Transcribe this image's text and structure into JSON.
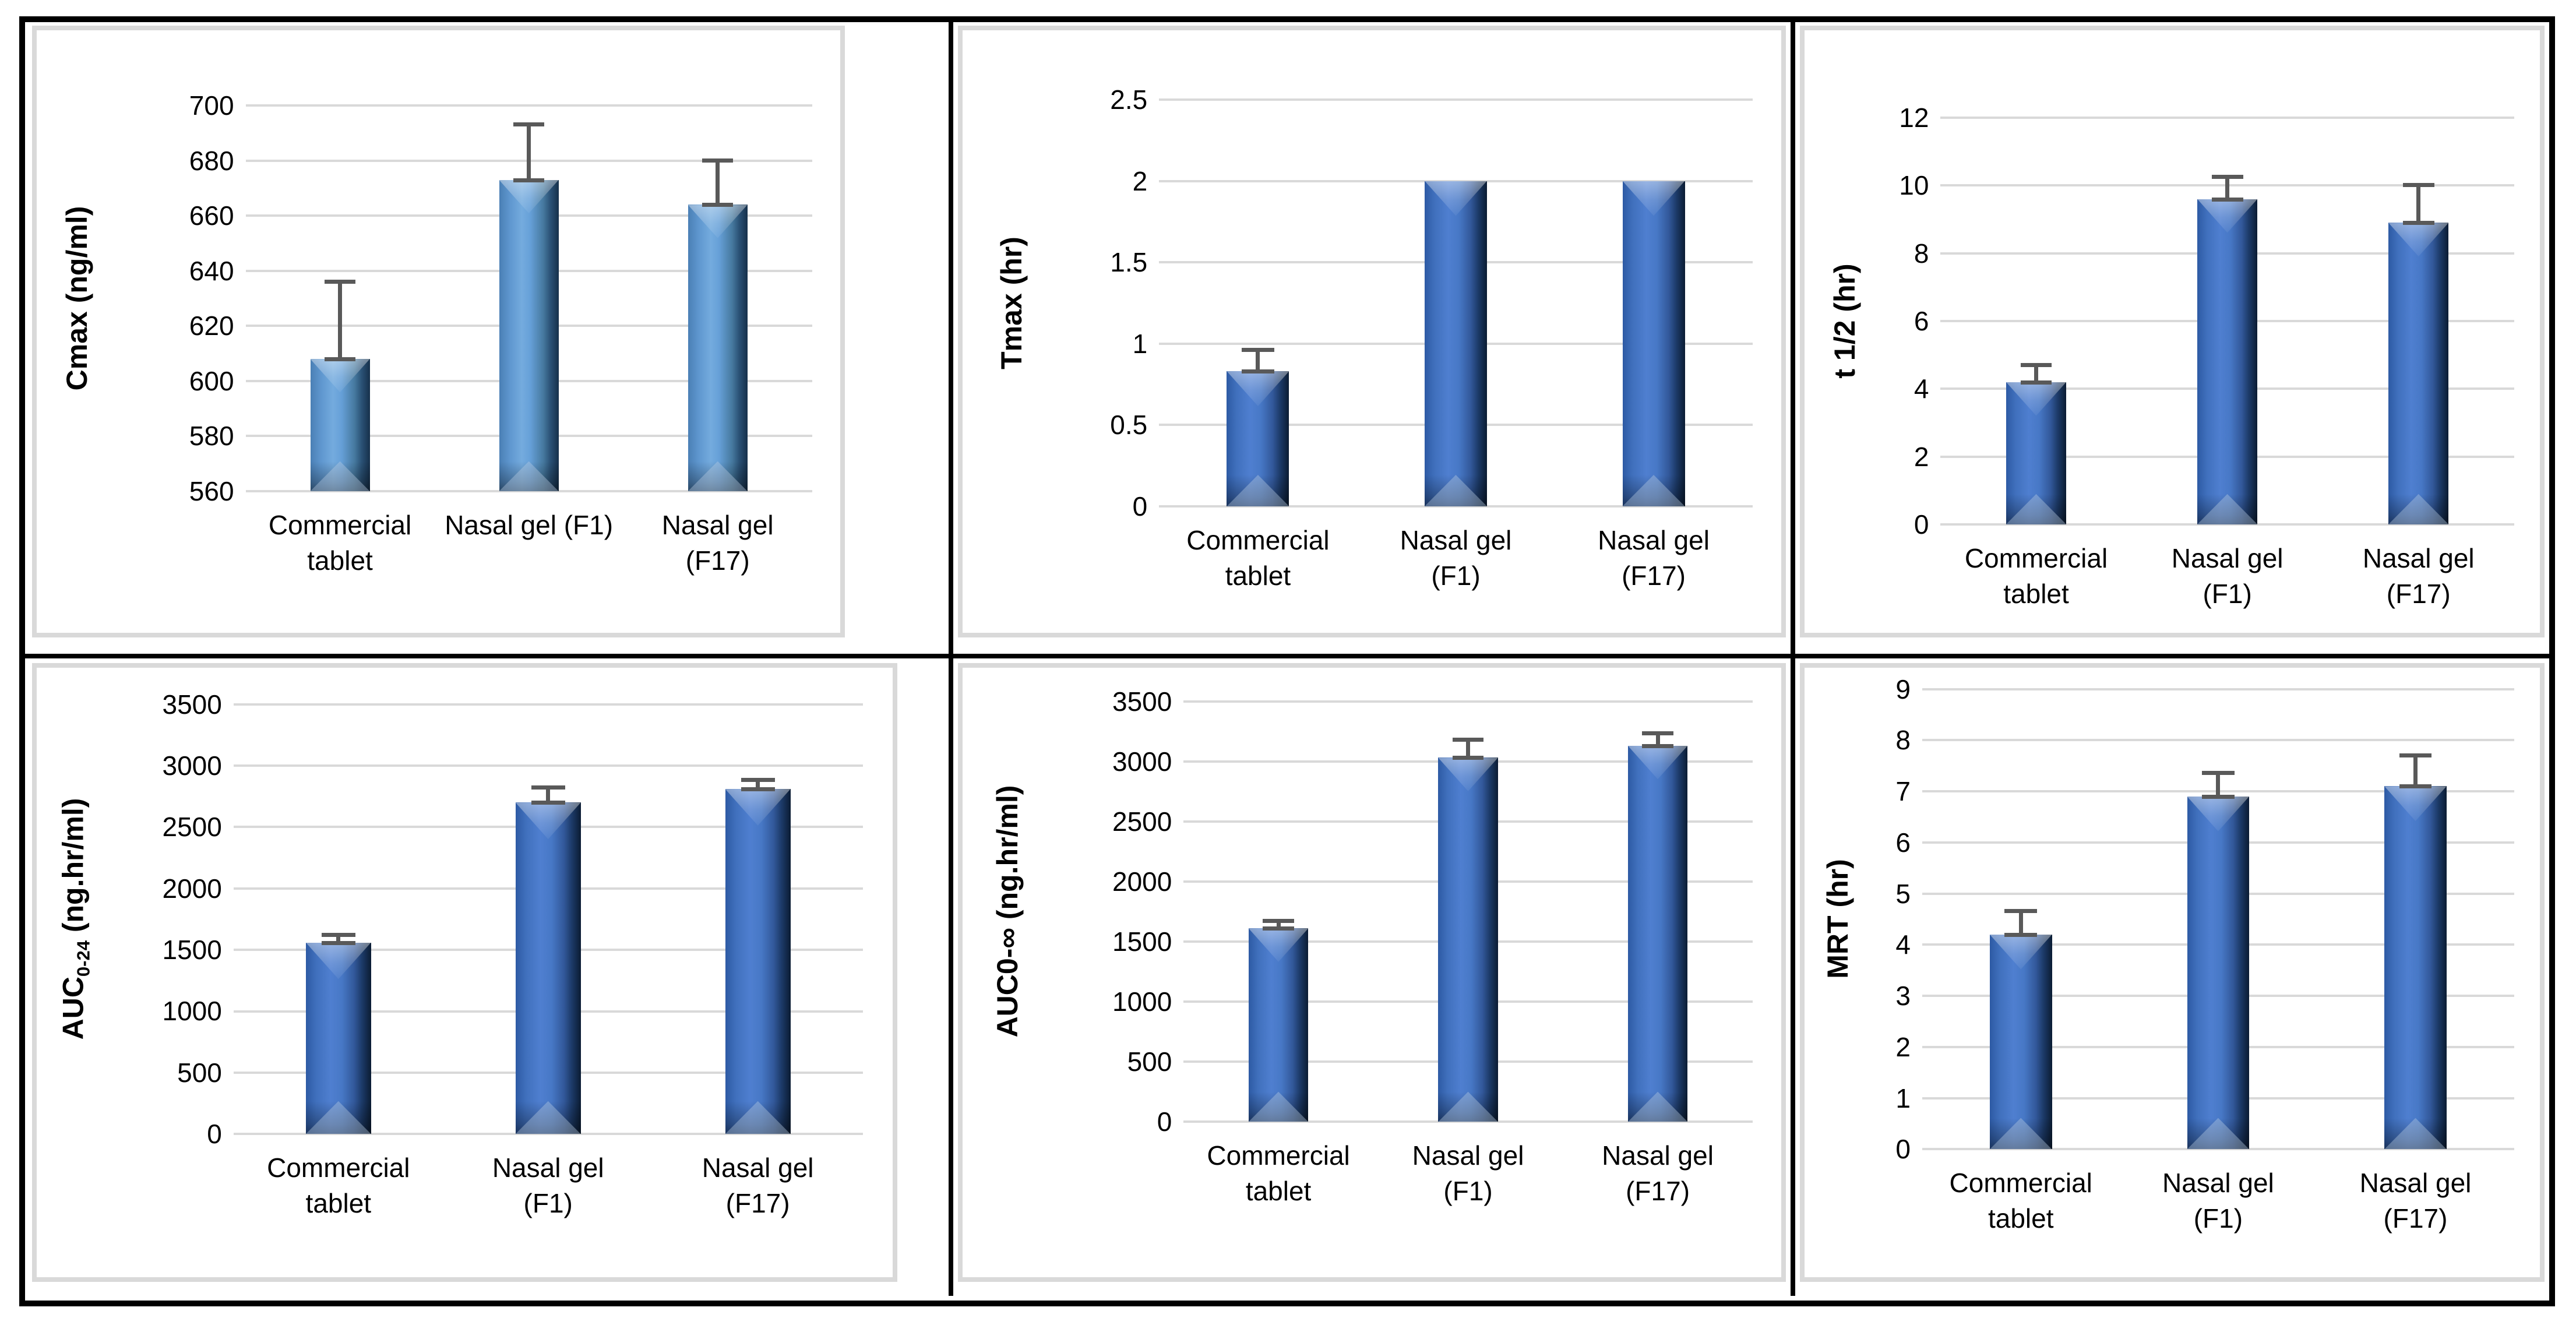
{
  "figure": {
    "description_visible_text_only": true,
    "colors": {
      "bar_light_base": "#6fa7dd",
      "bar_royal_base": "#4d7ed2",
      "gridline": "#d9d9d9",
      "chart_frame": "#d9d9d9",
      "error_bar": "#595959",
      "table_border": "#000000",
      "text": "#000000",
      "background": "#ffffff"
    }
  },
  "chart_data": [
    {
      "id": "cmax",
      "type": "bar",
      "ylabel": "Cmax (ng/ml)",
      "ymin": 560,
      "ymax": 700,
      "ystep": 20,
      "yticks": [
        "560",
        "580",
        "600",
        "620",
        "640",
        "660",
        "680",
        "700"
      ],
      "categories": [
        [
          "Commercial",
          "tablet"
        ],
        [
          "Nasal gel (F1)"
        ],
        [
          "Nasal gel",
          "(F17)"
        ]
      ],
      "values": [
        608,
        673,
        664
      ],
      "errors_plus": [
        28,
        20,
        16
      ],
      "bar_style": "light",
      "grid": true,
      "legend": "none"
    },
    {
      "id": "tmax",
      "type": "bar",
      "ylabel": "Tmax (hr)",
      "ymin": 0,
      "ymax": 2.5,
      "ystep": 0.5,
      "yticks": [
        "0",
        "0.5",
        "1",
        "1.5",
        "2",
        "2.5"
      ],
      "categories": [
        [
          "Commercial",
          "tablet"
        ],
        [
          "Nasal gel",
          "(F1)"
        ],
        [
          "Nasal gel",
          "(F17)"
        ]
      ],
      "values": [
        0.83,
        2,
        2
      ],
      "errors_plus": [
        0.13,
        0,
        0
      ],
      "bar_style": "royal",
      "grid": true,
      "legend": "none"
    },
    {
      "id": "t-half",
      "type": "bar",
      "ylabel": "t 1/2 (hr)",
      "ymin": 0,
      "ymax": 12,
      "ystep": 2,
      "yticks": [
        "0",
        "2",
        "4",
        "6",
        "8",
        "10",
        "12"
      ],
      "categories": [
        [
          "Commercial",
          "tablet"
        ],
        [
          "Nasal gel",
          "(F1)"
        ],
        [
          "Nasal gel",
          "(F17)"
        ]
      ],
      "values": [
        4.2,
        9.6,
        8.9
      ],
      "errors_plus": [
        0.5,
        0.65,
        1.1
      ],
      "bar_style": "royal",
      "grid": true,
      "legend": "none"
    },
    {
      "id": "auc-0-24",
      "type": "bar",
      "ylabel": "AUC0-24 (ng.hr/ml)",
      "ylabel_subscript": "0-24",
      "ymin": 0,
      "ymax": 3500,
      "ystep": 500,
      "yticks": [
        "0",
        "500",
        "1000",
        "1500",
        "2000",
        "2500",
        "3000",
        "3500"
      ],
      "categories": [
        [
          "Commercial",
          "tablet"
        ],
        [
          "Nasal gel",
          "(F1)"
        ],
        [
          "Nasal gel",
          "(F17)"
        ]
      ],
      "values": [
        1560,
        2700,
        2810
      ],
      "errors_plus": [
        60,
        120,
        70
      ],
      "bar_style": "royal",
      "grid": true,
      "legend": "none"
    },
    {
      "id": "auc-0-inf",
      "type": "bar",
      "ylabel": "AUC0-∞ (ng.hr/ml)",
      "ymin": 0,
      "ymax": 3500,
      "ystep": 500,
      "yticks": [
        "0",
        "500",
        "1000",
        "1500",
        "2000",
        "2500",
        "3000",
        "3500"
      ],
      "categories": [
        [
          "Commercial",
          "tablet"
        ],
        [
          "Nasal gel",
          "(F1)"
        ],
        [
          "Nasal gel",
          "(F17)"
        ]
      ],
      "values": [
        1610,
        3030,
        3130
      ],
      "errors_plus": [
        60,
        150,
        100
      ],
      "bar_style": "royal",
      "grid": true,
      "legend": "none"
    },
    {
      "id": "mrt",
      "type": "bar",
      "ylabel": "MRT (hr)",
      "ymin": 0,
      "ymax": 9,
      "ystep": 1,
      "yticks": [
        "0",
        "1",
        "2",
        "3",
        "4",
        "5",
        "6",
        "7",
        "8",
        "9"
      ],
      "categories": [
        [
          "Commercial",
          "tablet"
        ],
        [
          "Nasal gel",
          "(F1)"
        ],
        [
          "Nasal gel",
          "(F17)"
        ]
      ],
      "values": [
        4.2,
        6.9,
        7.1
      ],
      "errors_plus": [
        0.45,
        0.45,
        0.6
      ],
      "bar_style": "royal",
      "grid": true,
      "legend": "none"
    }
  ]
}
